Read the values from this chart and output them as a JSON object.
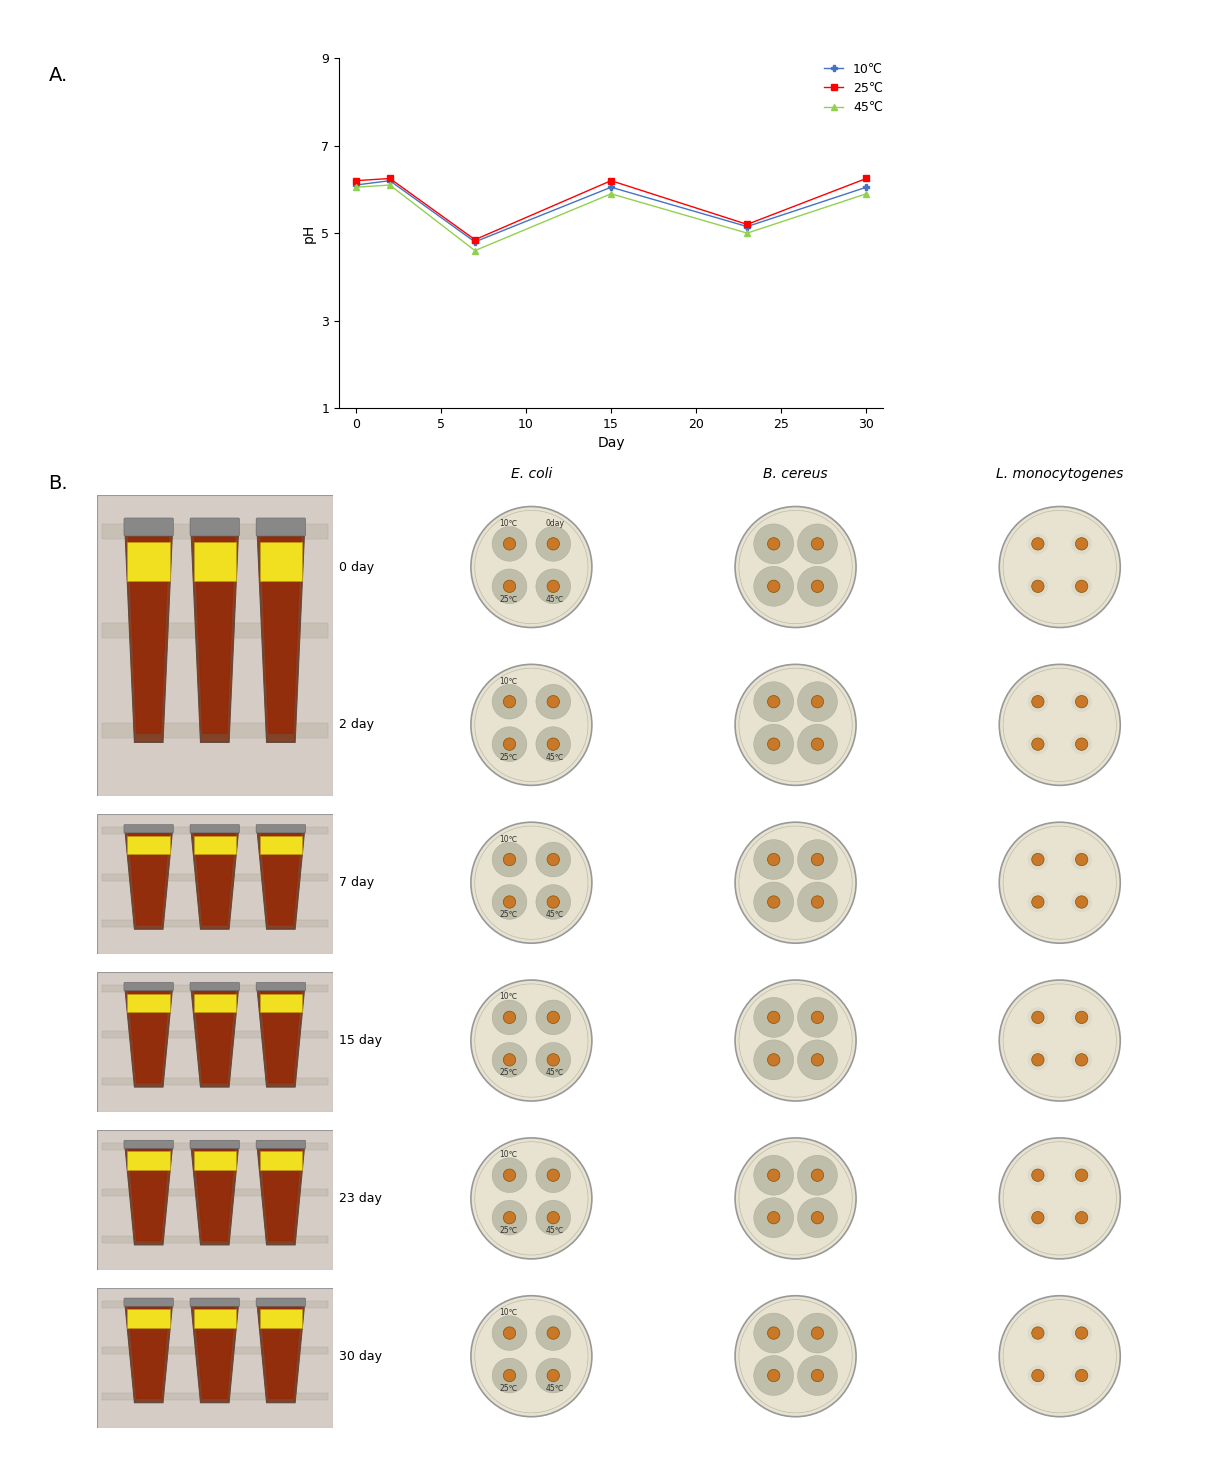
{
  "panel_a": {
    "days": [
      0,
      2,
      7,
      15,
      23,
      30
    ],
    "ph_10C": [
      6.1,
      6.2,
      4.8,
      6.05,
      5.15,
      6.05
    ],
    "ph_25C": [
      6.2,
      6.25,
      4.85,
      6.2,
      5.2,
      6.25
    ],
    "ph_45C": [
      6.05,
      6.1,
      4.6,
      5.9,
      5.0,
      5.9
    ],
    "color_10C": "#4472C4",
    "color_25C": "#FF0000",
    "color_45C": "#92D050",
    "marker_10C": "P",
    "marker_25C": "s",
    "marker_45C": "^",
    "label_10C": "10℃",
    "label_25C": "25℃",
    "label_45C": "45℃",
    "ylabel": "pH",
    "xlabel": "Day",
    "ylim": [
      1,
      9
    ],
    "yticks": [
      1,
      3,
      5,
      7,
      9
    ],
    "xticks": [
      0,
      5,
      10,
      15,
      20,
      25,
      30
    ],
    "xlim": [
      -1,
      31
    ]
  },
  "panel_b": {
    "row_labels": [
      "0 day",
      "2 day",
      "7 day",
      "15 day",
      "23 day",
      "30 day"
    ],
    "col_labels": [
      "E. coli",
      "B. cereus",
      "L. monocytogenes"
    ],
    "tube_bg": "#c8c0b8",
    "tube_rack_color": "#b0a898",
    "liquid_color": "#8B2500",
    "tube_glass_color": "#a04020",
    "plate_bg": "#e8e3d0",
    "plate_edge": "#aaaaaa",
    "halo_color_ecoli": "#c0c0b0",
    "halo_color_bcereus": "#b8b8a8",
    "halo_color_lmono": "#d0cfc0",
    "disk_color": "#c87828",
    "disk_edge": "#8B5500",
    "text_color": "#333333"
  }
}
